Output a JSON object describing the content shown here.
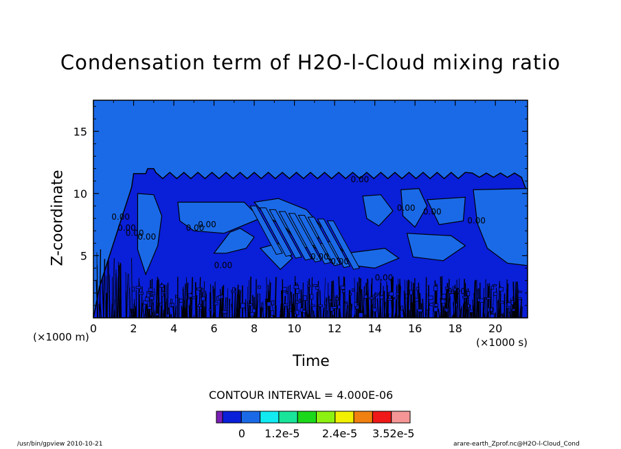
{
  "chart_data": {
    "type": "heatmap",
    "title": "Condensation term of H2O-l-Cloud mixing ratio",
    "xlabel": "Time",
    "x_unit_label": "(×1000 s)",
    "ylabel": "Z-coordinate",
    "y_unit_label": "(×1000 m)",
    "xlim": [
      0,
      21.6
    ],
    "ylim": [
      0,
      17.5
    ],
    "x_ticks": [
      0,
      2,
      4,
      6,
      8,
      10,
      12,
      14,
      16,
      18,
      20
    ],
    "y_ticks": [
      5,
      10,
      15
    ],
    "contour_interval": "CONTOUR INTERVAL = 4.000E-06",
    "contour_labels": [
      "0.00"
    ],
    "colorbar": {
      "colors": [
        "#7a1fb5",
        "#0a1fd8",
        "#1a6ae8",
        "#11eaf0",
        "#19e49a",
        "#1bd81b",
        "#8cf010",
        "#f0f000",
        "#f08010",
        "#f01818",
        "#f59595"
      ],
      "tick_labels": [
        "0",
        "1.2e-5",
        "2.4e-5",
        "3.52e-5"
      ],
      "tick_values": [
        0,
        1.2e-05,
        2.4e-05,
        3.52e-05
      ]
    },
    "background_field": "#1a6ae8",
    "cloud_field": "#0a1fd8"
  },
  "footer": {
    "left": "/usr/bin/gpview  2010-10-21",
    "right": "arare-earth_Zprof.nc@H2O-l-Cloud_Cond"
  }
}
